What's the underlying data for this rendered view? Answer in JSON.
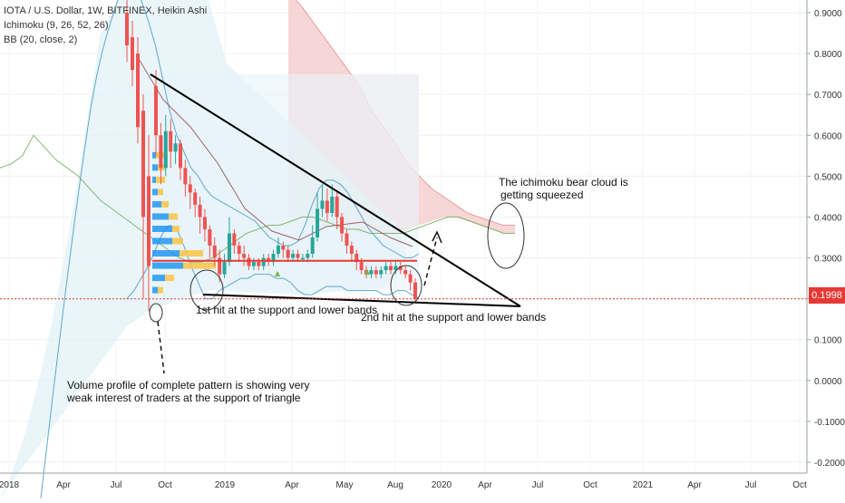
{
  "header": {
    "symbol_line": "IOTA / U.S. Dollar, 1W, BITFINEX, Heikin Ashi",
    "ichimoku_line": "Ichimoku (9, 26, 52, 26)",
    "bb_line": "BB (20, close, 2)"
  },
  "current_price": "0.1998",
  "annotations": {
    "first_hit": "1st hit at the support and lower bands",
    "second_hit": "2nd hit at the support and lower bands",
    "cloud_line1": "The ichimoku bear cloud is",
    "cloud_line2": "getting squeezed",
    "volume_line1": "Volume profile of complete pattern is showing very",
    "volume_line2": "weak interest of traders at the support of triangle"
  },
  "colors": {
    "bull": "#26a69a",
    "bear": "#ef5350",
    "bb_band": "#5da9c9",
    "ichimoku_lead": "#6aa84f",
    "cloud_bear": "#f4cccc",
    "trendline": "#000000",
    "support_line": "#e53935",
    "volume_up": "#2196f3",
    "volume_down": "#f9c74f"
  },
  "chart_data": {
    "type": "candlestick",
    "x_axis_labels": [
      "2018",
      "Apr",
      "Jul",
      "Oct",
      "2019",
      "Apr",
      "May",
      "Aug",
      "2020",
      "Apr",
      "Jul",
      "Oct",
      "2021",
      "Apr",
      "Jul",
      "Oct"
    ],
    "y_axis_labels": [
      "0.9000",
      "0.8000",
      "0.7000",
      "0.6000",
      "0.5000",
      "0.4000",
      "0.3000",
      "0.2000",
      "0.1000",
      "0.0000",
      "-0.1000",
      "-0.2000"
    ],
    "ylim": [
      -0.22,
      0.93
    ],
    "support_level": 0.293,
    "current_price": 0.1998,
    "candles": [
      {
        "o": 0.72,
        "c": 0.6,
        "h": 0.76,
        "l": 0.55
      },
      {
        "o": 0.6,
        "c": 0.52,
        "h": 0.63,
        "l": 0.48
      },
      {
        "o": 0.52,
        "c": 0.61,
        "h": 0.65,
        "l": 0.5
      },
      {
        "o": 0.61,
        "c": 0.56,
        "h": 0.64,
        "l": 0.52
      },
      {
        "o": 0.56,
        "c": 0.58,
        "h": 0.6,
        "l": 0.53
      },
      {
        "o": 0.58,
        "c": 0.52,
        "h": 0.59,
        "l": 0.49
      },
      {
        "o": 0.52,
        "c": 0.48,
        "h": 0.54,
        "l": 0.45
      },
      {
        "o": 0.48,
        "c": 0.46,
        "h": 0.5,
        "l": 0.42
      },
      {
        "o": 0.46,
        "c": 0.43,
        "h": 0.47,
        "l": 0.4
      },
      {
        "o": 0.43,
        "c": 0.4,
        "h": 0.45,
        "l": 0.36
      },
      {
        "o": 0.4,
        "c": 0.37,
        "h": 0.42,
        "l": 0.34
      },
      {
        "o": 0.37,
        "c": 0.33,
        "h": 0.38,
        "l": 0.3
      },
      {
        "o": 0.33,
        "c": 0.3,
        "h": 0.35,
        "l": 0.28
      },
      {
        "o": 0.3,
        "c": 0.26,
        "h": 0.32,
        "l": 0.24
      },
      {
        "o": 0.26,
        "c": 0.29,
        "h": 0.31,
        "l": 0.25
      },
      {
        "o": 0.29,
        "c": 0.36,
        "h": 0.4,
        "l": 0.28
      },
      {
        "o": 0.36,
        "c": 0.33,
        "h": 0.37,
        "l": 0.31
      },
      {
        "o": 0.33,
        "c": 0.31,
        "h": 0.34,
        "l": 0.29
      },
      {
        "o": 0.31,
        "c": 0.3,
        "h": 0.33,
        "l": 0.28
      },
      {
        "o": 0.3,
        "c": 0.28,
        "h": 0.31,
        "l": 0.27
      },
      {
        "o": 0.28,
        "c": 0.29,
        "h": 0.3,
        "l": 0.27
      },
      {
        "o": 0.29,
        "c": 0.28,
        "h": 0.3,
        "l": 0.27
      },
      {
        "o": 0.28,
        "c": 0.3,
        "h": 0.31,
        "l": 0.27
      },
      {
        "o": 0.3,
        "c": 0.29,
        "h": 0.31,
        "l": 0.28
      },
      {
        "o": 0.29,
        "c": 0.31,
        "h": 0.32,
        "l": 0.28
      },
      {
        "o": 0.31,
        "c": 0.33,
        "h": 0.35,
        "l": 0.3
      },
      {
        "o": 0.33,
        "c": 0.32,
        "h": 0.34,
        "l": 0.3
      },
      {
        "o": 0.32,
        "c": 0.3,
        "h": 0.33,
        "l": 0.29
      },
      {
        "o": 0.3,
        "c": 0.31,
        "h": 0.32,
        "l": 0.29
      },
      {
        "o": 0.31,
        "c": 0.3,
        "h": 0.32,
        "l": 0.29
      },
      {
        "o": 0.3,
        "c": 0.3,
        "h": 0.31,
        "l": 0.29
      },
      {
        "o": 0.3,
        "c": 0.31,
        "h": 0.32,
        "l": 0.29
      },
      {
        "o": 0.31,
        "c": 0.35,
        "h": 0.38,
        "l": 0.3
      },
      {
        "o": 0.35,
        "c": 0.42,
        "h": 0.46,
        "l": 0.34
      },
      {
        "o": 0.42,
        "c": 0.44,
        "h": 0.48,
        "l": 0.4
      },
      {
        "o": 0.44,
        "c": 0.41,
        "h": 0.47,
        "l": 0.39
      },
      {
        "o": 0.41,
        "c": 0.45,
        "h": 0.48,
        "l": 0.4
      },
      {
        "o": 0.45,
        "c": 0.4,
        "h": 0.46,
        "l": 0.37
      },
      {
        "o": 0.4,
        "c": 0.36,
        "h": 0.41,
        "l": 0.34
      },
      {
        "o": 0.36,
        "c": 0.33,
        "h": 0.37,
        "l": 0.31
      },
      {
        "o": 0.33,
        "c": 0.31,
        "h": 0.34,
        "l": 0.29
      },
      {
        "o": 0.31,
        "c": 0.29,
        "h": 0.32,
        "l": 0.27
      },
      {
        "o": 0.29,
        "c": 0.27,
        "h": 0.3,
        "l": 0.26
      },
      {
        "o": 0.27,
        "c": 0.26,
        "h": 0.28,
        "l": 0.25
      },
      {
        "o": 0.26,
        "c": 0.27,
        "h": 0.28,
        "l": 0.25
      },
      {
        "o": 0.27,
        "c": 0.26,
        "h": 0.28,
        "l": 0.25
      },
      {
        "o": 0.26,
        "c": 0.27,
        "h": 0.28,
        "l": 0.25
      },
      {
        "o": 0.27,
        "c": 0.28,
        "h": 0.29,
        "l": 0.26
      },
      {
        "o": 0.28,
        "c": 0.27,
        "h": 0.29,
        "l": 0.26
      },
      {
        "o": 0.27,
        "c": 0.28,
        "h": 0.29,
        "l": 0.26
      },
      {
        "o": 0.28,
        "c": 0.27,
        "h": 0.29,
        "l": 0.26
      },
      {
        "o": 0.27,
        "c": 0.26,
        "h": 0.28,
        "l": 0.25
      },
      {
        "o": 0.26,
        "c": 0.24,
        "h": 0.27,
        "l": 0.22
      },
      {
        "o": 0.24,
        "c": 0.2,
        "h": 0.25,
        "l": 0.19
      }
    ],
    "bollinger": {
      "upper": [
        0.98,
        0.96,
        0.93,
        0.88,
        0.82,
        0.74,
        0.66,
        0.6,
        0.56,
        0.52,
        0.5,
        0.47,
        0.45,
        0.44,
        0.43,
        0.42,
        0.41,
        0.4,
        0.39,
        0.37,
        0.35,
        0.34,
        0.33,
        0.33,
        0.34,
        0.38,
        0.43,
        0.47,
        0.49,
        0.49,
        0.48,
        0.46,
        0.43,
        0.4,
        0.37,
        0.35,
        0.33,
        0.32,
        0.31,
        0.3,
        0.3,
        0.31
      ],
      "lower": [
        0.2,
        0.22,
        0.25,
        0.28,
        0.32,
        0.36,
        0.38,
        0.37,
        0.33,
        0.28,
        0.24,
        0.2,
        0.2,
        0.22,
        0.23,
        0.24,
        0.25,
        0.25,
        0.26,
        0.26,
        0.26,
        0.25,
        0.25,
        0.24,
        0.22,
        0.21,
        0.21,
        0.22,
        0.23,
        0.23,
        0.23,
        0.22,
        0.22,
        0.22,
        0.22,
        0.22,
        0.21,
        0.21,
        0.22,
        0.22,
        0.21,
        0.2
      ]
    },
    "ichimoku_lead_a": [
      0.52,
      0.53,
      0.55,
      0.6,
      0.57,
      0.54,
      0.52,
      0.5,
      0.47,
      0.44,
      0.42,
      0.4,
      0.38,
      0.36,
      0.34,
      0.32,
      0.3,
      0.29,
      0.29,
      0.3,
      0.32,
      0.34,
      0.36,
      0.37,
      0.38,
      0.38,
      0.39,
      0.4,
      0.4,
      0.39,
      0.38,
      0.37,
      0.37,
      0.36,
      0.36,
      0.36,
      0.36,
      0.37,
      0.38,
      0.39,
      0.4,
      0.4,
      0.39,
      0.38,
      0.37,
      0.36,
      0.36
    ],
    "ichimoku_cloud_top": [
      0.95,
      0.92,
      0.88,
      0.84,
      0.8,
      0.76,
      0.72,
      0.66,
      0.62,
      0.58,
      0.53,
      0.5,
      0.47,
      0.45,
      0.43,
      0.41,
      0.4,
      0.39,
      0.38,
      0.38
    ],
    "volume_profile_rows": [
      {
        "price": 0.55,
        "up": 4,
        "down": 10
      },
      {
        "price": 0.52,
        "up": 6,
        "down": 8
      },
      {
        "price": 0.49,
        "up": 4,
        "down": 10
      },
      {
        "price": 0.46,
        "up": 6,
        "down": 6
      },
      {
        "price": 0.43,
        "up": 10,
        "down": 8
      },
      {
        "price": 0.4,
        "up": 18,
        "down": 10
      },
      {
        "price": 0.37,
        "up": 22,
        "down": 8
      },
      {
        "price": 0.34,
        "up": 22,
        "down": 12
      },
      {
        "price": 0.31,
        "up": 30,
        "down": 26
      },
      {
        "price": 0.28,
        "up": 34,
        "down": 36
      },
      {
        "price": 0.25,
        "up": 14,
        "down": 10
      },
      {
        "price": 0.22,
        "up": 6,
        "down": 6
      }
    ]
  }
}
